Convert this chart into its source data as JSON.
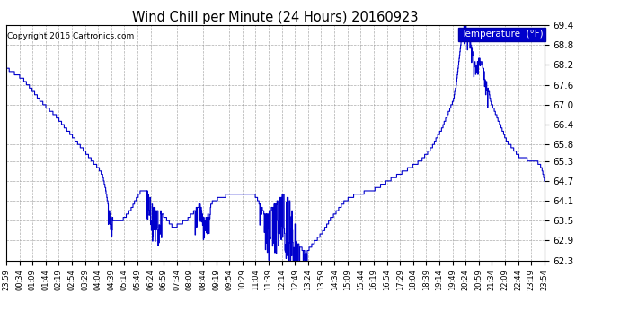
{
  "title": "Wind Chill per Minute (24 Hours) 20160923",
  "copyright": "Copyright 2016 Cartronics.com",
  "legend_label": "Temperature  (°F)",
  "line_color": "#0000CC",
  "background_color": "#ffffff",
  "grid_color": "#b0b0b0",
  "y_min": 62.3,
  "y_max": 69.4,
  "y_ticks": [
    62.3,
    62.9,
    63.5,
    64.1,
    64.7,
    65.3,
    65.8,
    66.4,
    67.0,
    67.6,
    68.2,
    68.8,
    69.4
  ],
  "x_tick_labels": [
    "23:59",
    "00:34",
    "01:09",
    "01:44",
    "02:19",
    "02:54",
    "03:29",
    "04:04",
    "04:39",
    "05:14",
    "05:49",
    "06:24",
    "06:59",
    "07:34",
    "08:09",
    "08:44",
    "09:19",
    "09:54",
    "10:29",
    "11:04",
    "11:39",
    "12:14",
    "12:49",
    "13:24",
    "13:59",
    "14:34",
    "15:09",
    "15:44",
    "16:19",
    "16:54",
    "17:29",
    "18:04",
    "18:39",
    "19:14",
    "19:49",
    "20:24",
    "20:59",
    "21:34",
    "22:09",
    "22:44",
    "23:19",
    "23:54"
  ]
}
